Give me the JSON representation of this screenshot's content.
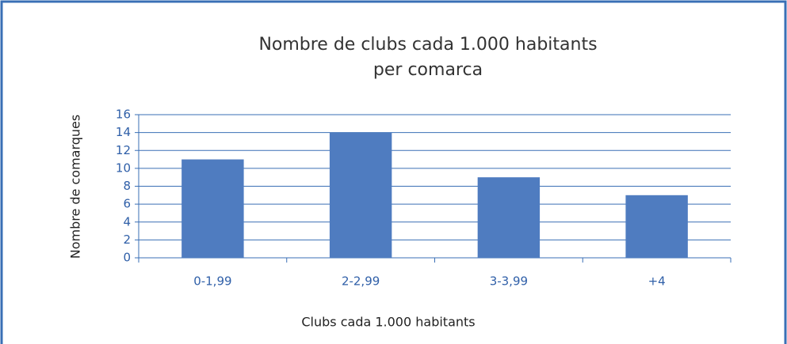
{
  "chart_data": {
    "type": "bar",
    "title": [
      "Nombre de clubs cada 1.000 habitants",
      "per comarca"
    ],
    "x_label": "Clubs cada 1.000 habitants",
    "y_label": "Nombre de comarques",
    "categories": [
      "0-1,99",
      "2-2,99",
      "3-3,99",
      "+4"
    ],
    "values": [
      11,
      14,
      9,
      7
    ],
    "color": "#4f7cc0",
    "ylim": [
      0,
      16
    ],
    "yticks": [
      0,
      2,
      4,
      6,
      8,
      10,
      12,
      14,
      16
    ],
    "grid": true
  }
}
